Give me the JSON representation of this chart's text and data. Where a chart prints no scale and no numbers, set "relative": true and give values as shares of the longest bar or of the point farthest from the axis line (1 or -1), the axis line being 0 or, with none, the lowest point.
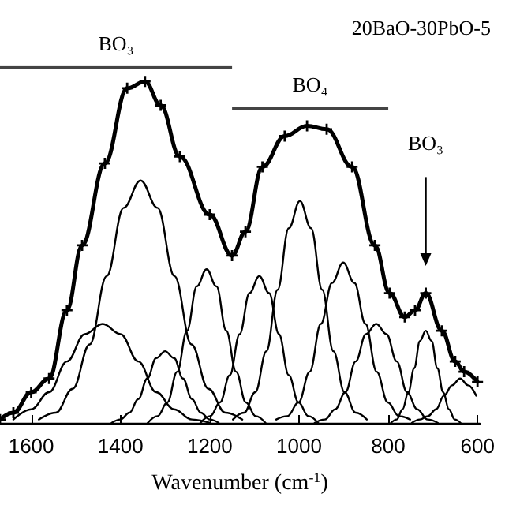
{
  "chart_data": {
    "type": "line",
    "title": "20BaO-30PbO-5",
    "xlabel": "Wavenumber (cm$^{-1}$)",
    "relative": true,
    "xlim": [
      1670,
      595
    ],
    "xticks": [
      1600,
      1400,
      1200,
      1000,
      800,
      600
    ],
    "annotations": [
      "BO₃",
      "BO₄",
      "BO₃"
    ],
    "series": [
      {
        "color": "#000000",
        "marker": "cross",
        "x": [
          1670,
          1640,
          1600,
          1560,
          1520,
          1486,
          1435,
          1385,
          1345,
          1310,
          1267,
          1200,
          1150,
          1120,
          1082,
          1032,
          982,
          938,
          881,
          830,
          797,
          763,
          740,
          716,
          680,
          650,
          630,
          600
        ],
        "values": [
          0.01,
          0.03,
          0.09,
          0.13,
          0.33,
          0.52,
          0.76,
          0.98,
          1.0,
          0.93,
          0.78,
          0.61,
          0.49,
          0.56,
          0.75,
          0.84,
          0.87,
          0.86,
          0.75,
          0.52,
          0.38,
          0.31,
          0.33,
          0.38,
          0.27,
          0.18,
          0.15,
          0.12
        ]
      },
      {
        "color": "#000000",
        "marker": "none",
        "x": [
          1640,
          1600,
          1560,
          1520,
          1480,
          1440,
          1400,
          1360,
          1320,
          1280,
          1240,
          1200
        ],
        "values": [
          0.01,
          0.04,
          0.09,
          0.18,
          0.26,
          0.29,
          0.26,
          0.18,
          0.09,
          0.04,
          0.01,
          0
        ]
      },
      {
        "color": "#000000",
        "marker": "none",
        "x": [
          1583,
          1545,
          1507,
          1469,
          1431,
          1393,
          1355,
          1317,
          1279,
          1241,
          1203,
          1165,
          1127
        ],
        "values": [
          0.01,
          0.03,
          0.1,
          0.23,
          0.43,
          0.63,
          0.71,
          0.63,
          0.43,
          0.23,
          0.1,
          0.03,
          0.01
        ]
      },
      {
        "color": "#000000",
        "marker": "none",
        "x": [
          1420,
          1400,
          1380,
          1360,
          1340,
          1320,
          1300,
          1280,
          1260,
          1240,
          1220,
          1200,
          1180
        ],
        "values": [
          0,
          0.01,
          0.03,
          0.07,
          0.13,
          0.19,
          0.21,
          0.19,
          0.13,
          0.07,
          0.03,
          0.01,
          0
        ]
      },
      {
        "color": "#000000",
        "marker": "none",
        "x": [
          1339,
          1317,
          1295,
          1273,
          1251,
          1229,
          1207,
          1185,
          1163,
          1141,
          1119,
          1097,
          1075
        ],
        "values": [
          0,
          0.02,
          0.06,
          0.15,
          0.27,
          0.4,
          0.45,
          0.4,
          0.27,
          0.15,
          0.06,
          0.02,
          0
        ]
      },
      {
        "color": "#000000",
        "marker": "none",
        "x": [
          1221,
          1199,
          1177,
          1155,
          1133,
          1111,
          1089,
          1067,
          1045,
          1023,
          1001,
          979,
          957
        ],
        "values": [
          0,
          0.02,
          0.06,
          0.14,
          0.26,
          0.38,
          0.43,
          0.38,
          0.26,
          0.14,
          0.06,
          0.02,
          0
        ]
      },
      {
        "color": "#000000",
        "marker": "none",
        "x": [
          1148,
          1123,
          1098,
          1073,
          1048,
          1023,
          998,
          973,
          948,
          923,
          898,
          873,
          848
        ],
        "values": [
          0.01,
          0.03,
          0.09,
          0.21,
          0.39,
          0.57,
          0.65,
          0.57,
          0.39,
          0.21,
          0.09,
          0.03,
          0.01
        ]
      },
      {
        "color": "#000000",
        "marker": "none",
        "x": [
          1051,
          1026,
          1001,
          976,
          951,
          926,
          901,
          876,
          851,
          826,
          801,
          776,
          751
        ],
        "values": [
          0.01,
          0.02,
          0.06,
          0.15,
          0.29,
          0.41,
          0.47,
          0.41,
          0.29,
          0.15,
          0.06,
          0.02,
          0.01
        ]
      },
      {
        "color": "#000000",
        "marker": "none",
        "x": [
          965,
          942,
          919,
          896,
          873,
          850,
          827,
          804,
          781,
          758,
          735,
          712,
          689
        ],
        "values": [
          0,
          0.01,
          0.04,
          0.09,
          0.18,
          0.26,
          0.29,
          0.26,
          0.18,
          0.09,
          0.04,
          0.01,
          0
        ]
      },
      {
        "color": "#000000",
        "marker": "none",
        "x": [
          794,
          781,
          768,
          755,
          742,
          729,
          716,
          703,
          690,
          677,
          664,
          651,
          638
        ],
        "values": [
          0,
          0.01,
          0.04,
          0.09,
          0.16,
          0.24,
          0.27,
          0.24,
          0.16,
          0.09,
          0.04,
          0.01,
          0
        ]
      },
      {
        "color": "#000000",
        "marker": "none",
        "x": [
          747,
          729,
          711,
          693,
          675,
          657,
          639,
          621,
          603
        ],
        "values": [
          0,
          0.01,
          0.02,
          0.04,
          0.08,
          0.11,
          0.13,
          0.11,
          0.08
        ]
      }
    ]
  }
}
